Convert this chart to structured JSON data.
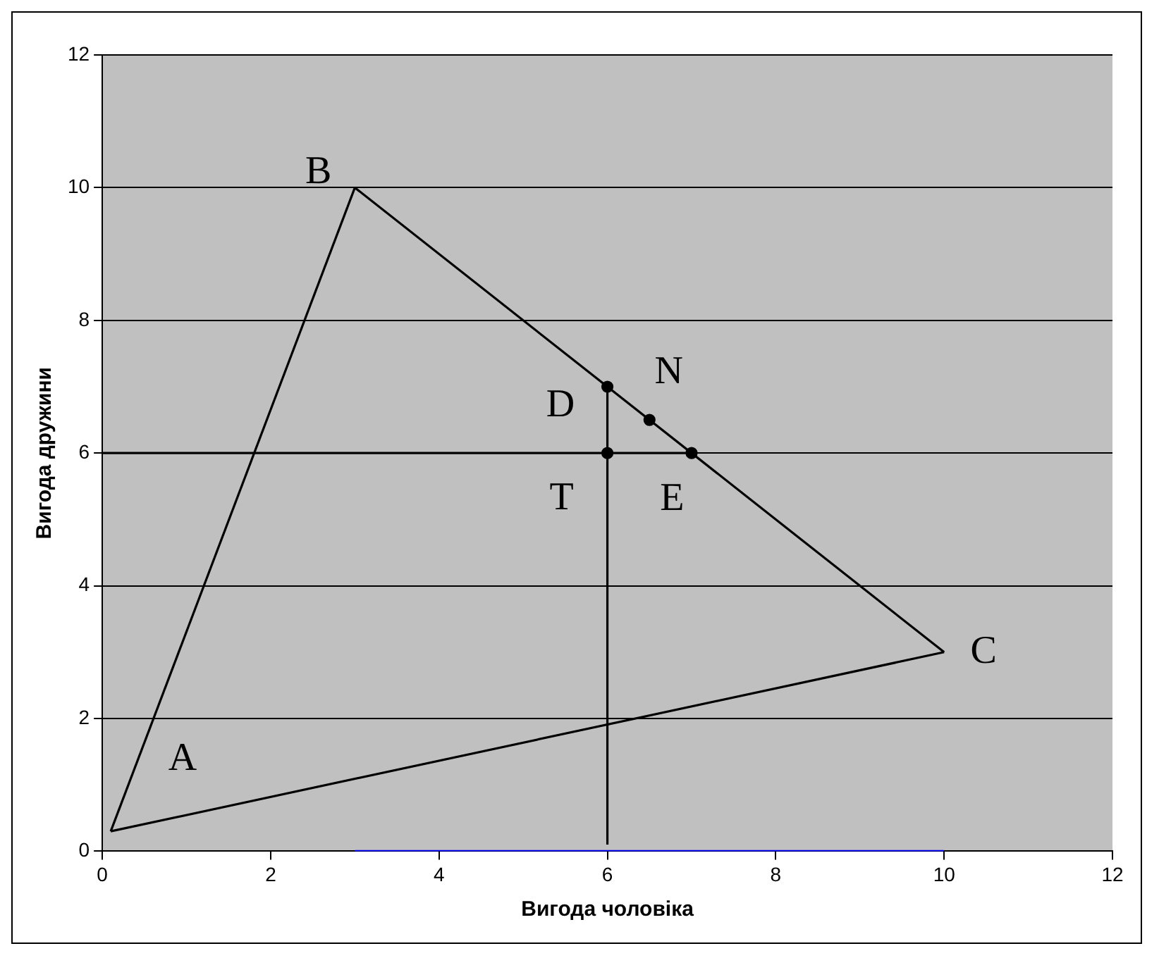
{
  "chart_data": {
    "type": "line",
    "xlabel": "Вигода чоловіка",
    "ylabel": "Вигода дружини",
    "xlim": [
      0,
      12
    ],
    "ylim": [
      0,
      12
    ],
    "xticks": [
      0,
      2,
      4,
      6,
      8,
      10,
      12
    ],
    "yticks": [
      0,
      2,
      4,
      6,
      8,
      10,
      12
    ],
    "grid": "y",
    "legend": false,
    "marker": "none",
    "line_style": "solid",
    "series": [
      {
        "color": "#000000",
        "x": [
          0.1,
          3
        ],
        "values": [
          0.3,
          10
        ]
      },
      {
        "color": "#000000",
        "x": [
          3,
          10
        ],
        "values": [
          10,
          3
        ]
      },
      {
        "color": "#000000",
        "x": [
          10,
          0.1
        ],
        "values": [
          3,
          0.3
        ]
      },
      {
        "color": "#000000",
        "x": [
          0,
          7
        ],
        "values": [
          6,
          6
        ]
      },
      {
        "color": "#000000",
        "x": [
          6,
          6
        ],
        "values": [
          0.1,
          7
        ]
      },
      {
        "color": "#0000ff",
        "x": [
          3,
          10
        ],
        "values": [
          0,
          0
        ]
      },
      {
        "type": "scatter",
        "marker": "circle",
        "color": "#000000",
        "x": [
          6,
          6.5,
          6,
          7
        ],
        "values": [
          7,
          6.5,
          6,
          6
        ]
      }
    ],
    "annotations": [
      {
        "text": "A",
        "x": 0.1,
        "y": 0.3
      },
      {
        "text": "B",
        "x": 3,
        "y": 10
      },
      {
        "text": "C",
        "x": 10,
        "y": 3
      },
      {
        "text": "D",
        "x": 6,
        "y": 7
      },
      {
        "text": "N",
        "x": 6.5,
        "y": 6.5
      },
      {
        "text": "E",
        "x": 7,
        "y": 6
      },
      {
        "text": "T",
        "x": 6,
        "y": 6
      }
    ]
  }
}
